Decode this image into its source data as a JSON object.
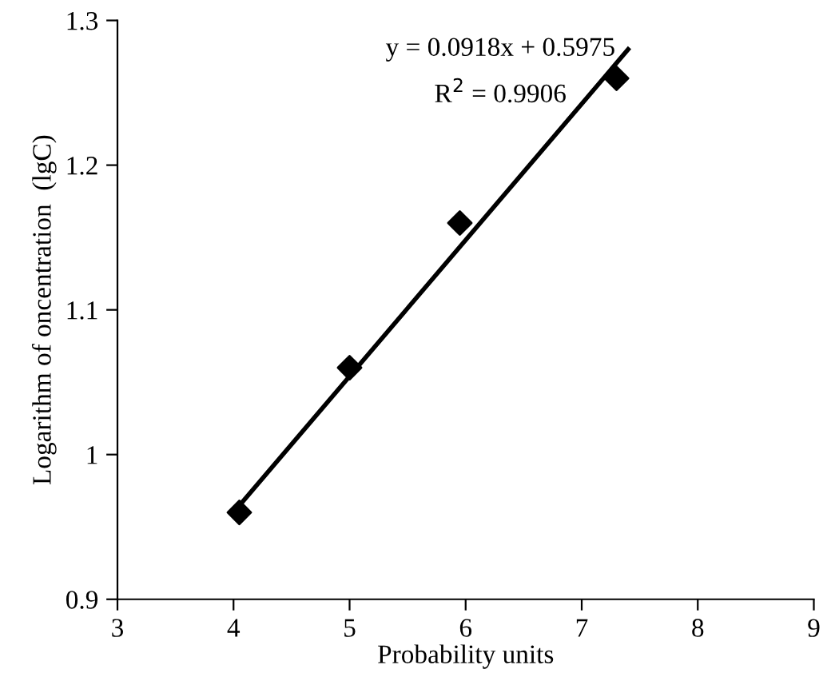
{
  "chart_data": {
    "type": "scatter",
    "xlabel": "Probability units",
    "ylabel": "Logarithm of oncentration  (lgC)",
    "series": [
      {
        "color": "#000000",
        "marker": "diamond",
        "x": [
          4.05,
          5.0,
          5.95,
          7.3
        ],
        "values": [
          0.96,
          1.06,
          1.16,
          1.26
        ]
      },
      {
        "type": "line",
        "color": "#000000",
        "x": [
          4.0,
          7.4
        ],
        "values": [
          0.96,
          1.28
        ]
      }
    ],
    "annotations": [
      "y = 0.0918x + 0.5975",
      "R$^{2}$ = 0.9906"
    ],
    "xlim": [
      3,
      9
    ],
    "xticks": [
      3,
      4,
      5,
      6,
      7,
      8,
      9
    ],
    "ylim": [
      0.9,
      1.3
    ],
    "yticks": [
      {
        "value": 0.9,
        "label": "0.9"
      },
      1,
      {
        "value": 1.1,
        "label": "1.1"
      },
      {
        "value": 1.2,
        "label": "1.2"
      },
      {
        "value": 1.3,
        "label": "1.3"
      }
    ],
    "grid": false,
    "legend": false
  }
}
